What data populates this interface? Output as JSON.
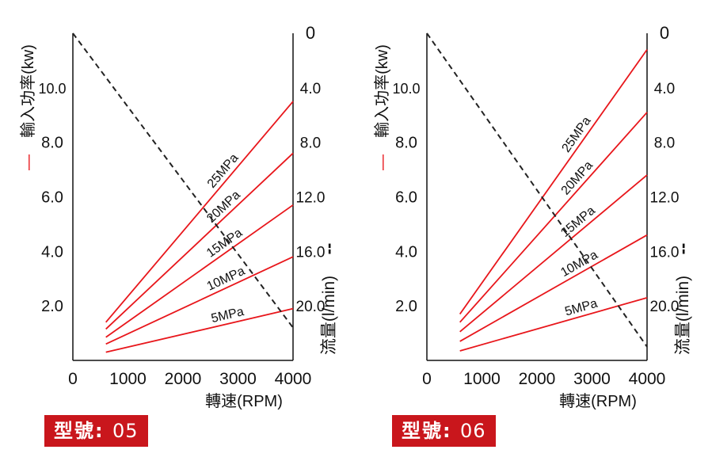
{
  "chart_data": [
    {
      "type": "line",
      "model_label": "型號",
      "model_sep": ":",
      "model": "05",
      "xlabel": "轉速(RPM)",
      "ylabel_left": "輸入功率(kw)",
      "ylabel_left_marker": "—",
      "ylabel_right": "流量(l/min)",
      "ylabel_right_marker": "--",
      "x_ticks": [
        "0",
        "1000",
        "2000",
        "3000",
        "4000"
      ],
      "y_left_ticks": [
        "2.0",
        "4.0",
        "6.0",
        "8.0",
        "10.0"
      ],
      "y_right_ticks": [
        "0",
        "4.0",
        "8.0",
        "12.0",
        "16.0",
        "20.0"
      ],
      "xlim": [
        0,
        4000
      ],
      "y_left_lim": [
        0,
        12
      ],
      "y_right_lim": [
        24,
        0
      ],
      "grid": false,
      "series": [
        {
          "name": "5MPa",
          "axis": "left",
          "x": [
            600,
            4000
          ],
          "y": [
            0.3,
            1.9
          ]
        },
        {
          "name": "10MPa",
          "axis": "left",
          "x": [
            600,
            4000
          ],
          "y": [
            0.6,
            3.8
          ]
        },
        {
          "name": "15MPa",
          "axis": "left",
          "x": [
            600,
            4000
          ],
          "y": [
            0.85,
            5.7
          ]
        },
        {
          "name": "20MPa",
          "axis": "left",
          "x": [
            600,
            4000
          ],
          "y": [
            1.15,
            7.6
          ]
        },
        {
          "name": "25MPa",
          "axis": "left",
          "x": [
            600,
            4000
          ],
          "y": [
            1.4,
            9.5
          ]
        },
        {
          "name": "",
          "axis": "right",
          "style": "dashed",
          "x": [
            0,
            4000
          ],
          "y": [
            0,
            21.6
          ]
        }
      ],
      "colors": {
        "power": "#e8161b",
        "flow": "#222222",
        "axis": "#111111",
        "badge": "#c9161c"
      }
    },
    {
      "type": "line",
      "model_label": "型號",
      "model_sep": ":",
      "model": "06",
      "xlabel": "轉速(RPM)",
      "ylabel_left": "輸入功率(kw)",
      "ylabel_left_marker": "—",
      "ylabel_right": "流量(l/min)",
      "ylabel_right_marker": "--",
      "x_ticks": [
        "0",
        "1000",
        "2000",
        "3000",
        "4000"
      ],
      "y_left_ticks": [
        "2.0",
        "4.0",
        "6.0",
        "8.0",
        "10.0"
      ],
      "y_right_ticks": [
        "0",
        "4.0",
        "8.0",
        "12.0",
        "16.0",
        "20.0"
      ],
      "xlim": [
        0,
        4000
      ],
      "y_left_lim": [
        0,
        12
      ],
      "y_right_lim": [
        24,
        0
      ],
      "grid": false,
      "series": [
        {
          "name": "5MPa",
          "axis": "left",
          "x": [
            600,
            4000
          ],
          "y": [
            0.35,
            2.3
          ]
        },
        {
          "name": "10MPa",
          "axis": "left",
          "x": [
            600,
            4000
          ],
          "y": [
            0.7,
            4.6
          ]
        },
        {
          "name": "15MPa",
          "axis": "left",
          "x": [
            600,
            4000
          ],
          "y": [
            1.05,
            6.8
          ]
        },
        {
          "name": "20MPa",
          "axis": "left",
          "x": [
            600,
            4000
          ],
          "y": [
            1.4,
            9.1
          ]
        },
        {
          "name": "25MPa",
          "axis": "left",
          "x": [
            600,
            4000
          ],
          "y": [
            1.7,
            11.4
          ]
        },
        {
          "name": "",
          "axis": "right",
          "style": "dashed",
          "x": [
            0,
            4000
          ],
          "y": [
            0,
            23.0
          ]
        }
      ],
      "colors": {
        "power": "#e8161b",
        "flow": "#222222",
        "axis": "#111111",
        "badge": "#c9161c"
      }
    }
  ]
}
